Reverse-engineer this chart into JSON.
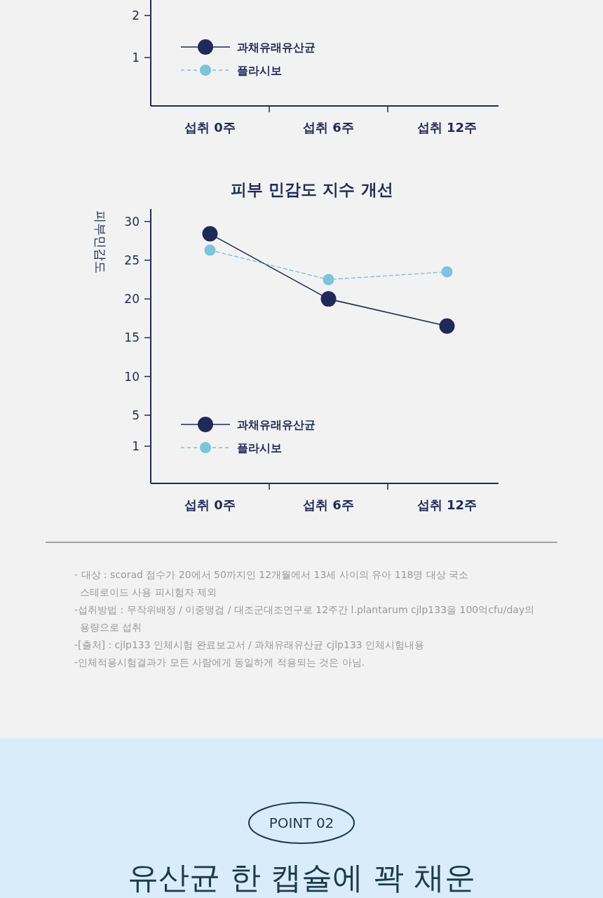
{
  "chart_data": [
    {
      "type": "line",
      "categories": [
        "섭취 0주",
        "섭취 6주",
        "섭취 12주"
      ],
      "series": [
        {
          "name": "과채유래유산균",
          "color": "#1f2a5a",
          "values": [
            null,
            null,
            null
          ],
          "line_style": "solid"
        },
        {
          "name": "플라시보",
          "color": "#7cc3dc",
          "values": [
            null,
            null,
            null
          ],
          "line_style": "dashed"
        }
      ],
      "ylim": [
        -0.15,
        2.37
      ],
      "yticks": [
        1,
        2
      ],
      "legend": "left",
      "marker": "circle",
      "grid": false
    },
    {
      "type": "line",
      "title": "피부 민감도 지수 개선",
      "ylabel": "피부민감도",
      "categories": [
        "섭취 0주",
        "섭취 6주",
        "섭취 12주"
      ],
      "series": [
        {
          "name": "과채유래유산균",
          "color": "#1f2a5a",
          "values": [
            28.4,
            20,
            16.5
          ],
          "line_style": "solid"
        },
        {
          "name": "플라시보",
          "color": "#7cc3dc",
          "values": [
            26.3,
            22.5,
            23.5
          ],
          "line_style": "dashed"
        }
      ],
      "ylim": [
        -3.8,
        31.6
      ],
      "yticks": [
        1,
        5,
        10,
        15,
        20,
        25,
        30
      ],
      "legend": "bottom left",
      "marker": "circle",
      "grid": false,
      "annotations": [
        "- 대상 : scorad 점수가 20에서 50까지인 12개월에서 13세 사이의 유아 118명 대상 국소",
        "스테로이드 사용 피시험자 제외",
        "-섭취방법 : 무작위배정 / 이중맹검 / 대조군대조연구로 12주간 l.plantarum cjlp133을 100억cfu/day의",
        "용량으로 섭취",
        "-[출처] : cjlp133 인체시험 완료보고서 / 과채유래유산균 cjlp133 인체시험내용",
        "-인체적용시험결과가 모든 사람에게 동일하게 적용되는 것은 아님.",
        "POINT 02",
        "유산균 한 캡슐에 꽉 채운"
      ]
    }
  ]
}
